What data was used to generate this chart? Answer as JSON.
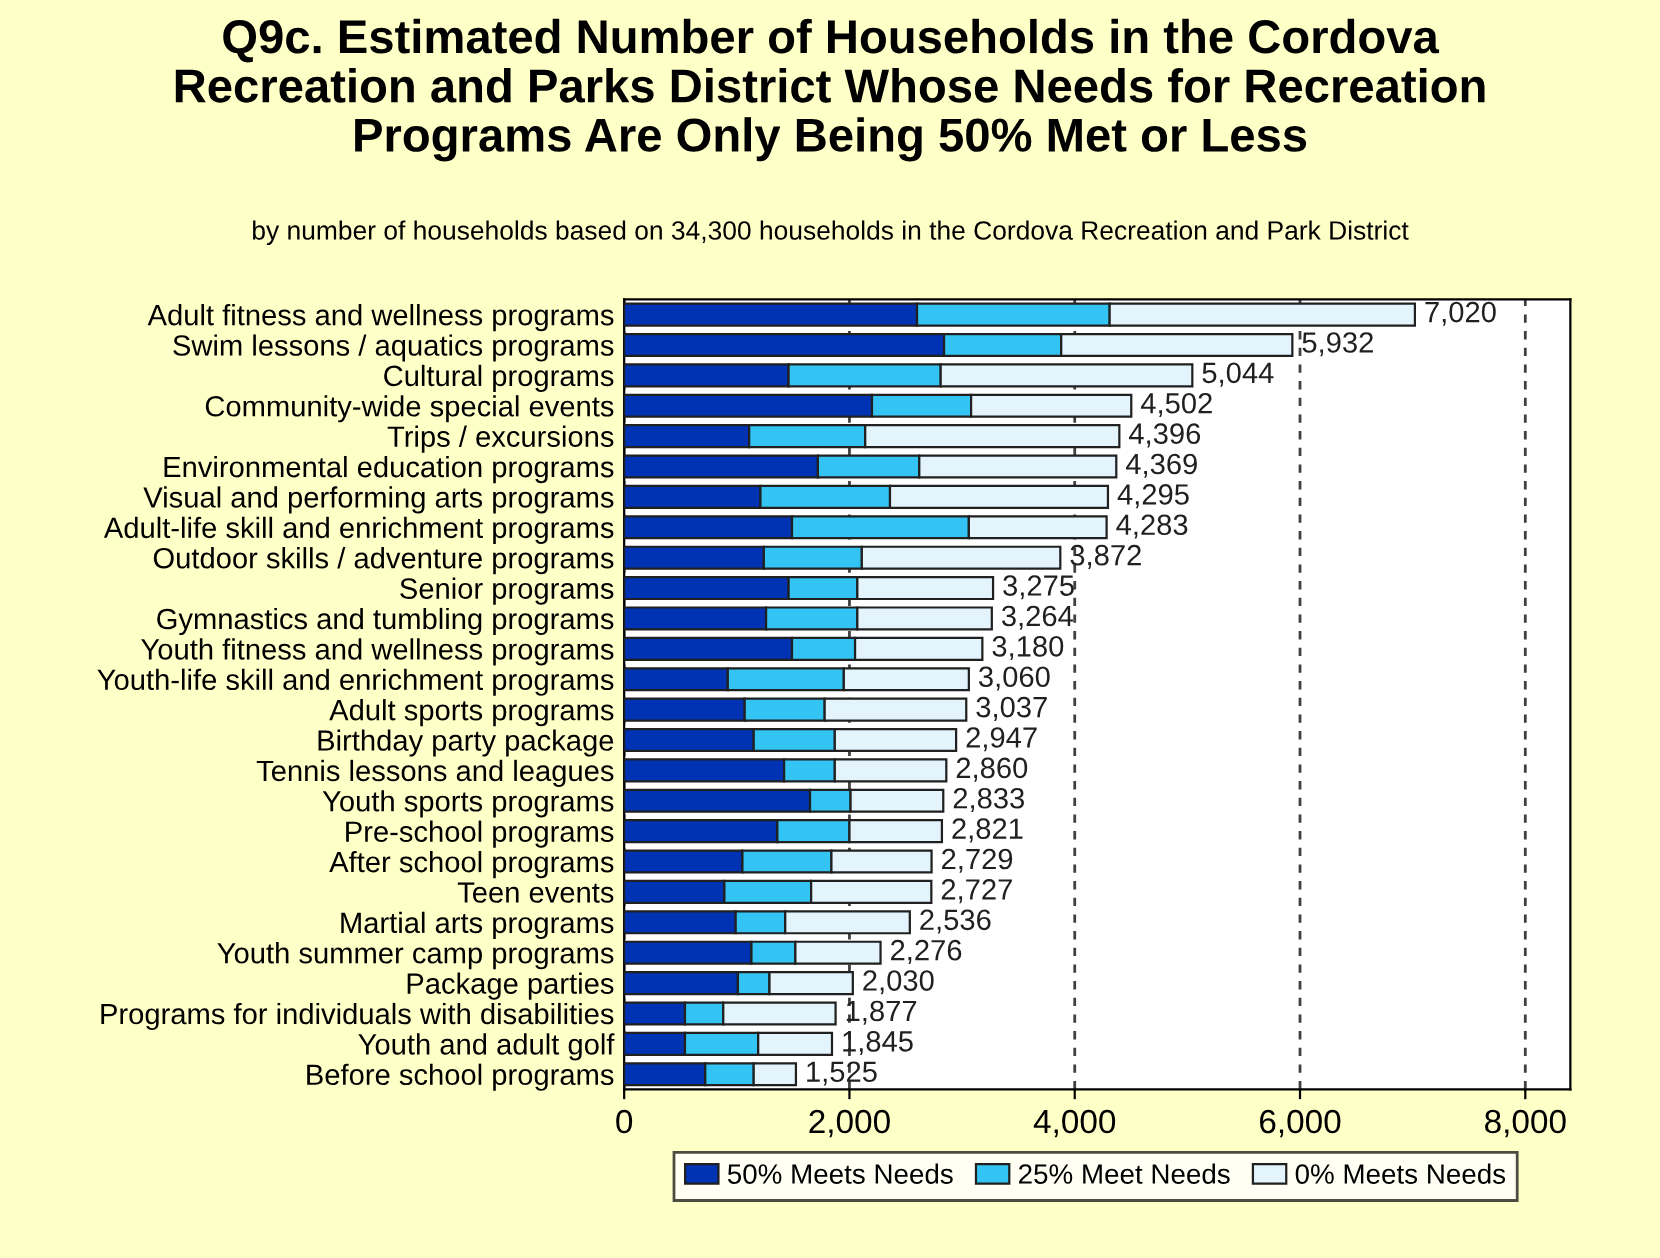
{
  "chart_data": {
    "type": "bar",
    "orientation": "horizontal",
    "stacked": true,
    "title": "Q9c. Estimated Number of Households in the Cordova\nRecreation and Parks District Whose Needs for Recreation\nPrograms Are Only Being 50% Met or Less",
    "subtitle": "by number of households based on 34,300 households in the Cordova Recreation and Park District",
    "categories": [
      "Adult fitness and wellness programs",
      "Swim lessons / aquatics programs",
      "Cultural programs",
      "Community-wide special events",
      "Trips / excursions",
      "Environmental education programs",
      "Visual and performing arts programs",
      "Adult-life skill and enrichment programs",
      "Outdoor skills / adventure programs",
      "Senior programs",
      "Gymnastics and tumbling programs",
      "Youth fitness and wellness programs",
      "Youth-life skill and enrichment programs",
      "Adult sports programs",
      "Birthday party package",
      "Tennis lessons and leagues",
      "Youth sports programs",
      "Pre-school programs",
      "After school programs",
      "Teen events",
      "Martial arts programs",
      "Youth summer camp programs",
      "Package parties",
      "Programs for individuals with disabilities",
      "Youth and adult golf",
      "Before school programs"
    ],
    "series": [
      {
        "name": "50% Meets Needs",
        "color": "#0033b4",
        "values": [
          2600,
          2840,
          1460,
          2200,
          1110,
          1720,
          1210,
          1490,
          1240,
          1460,
          1260,
          1490,
          920,
          1070,
          1150,
          1420,
          1650,
          1360,
          1050,
          890,
          990,
          1130,
          1010,
          540,
          540,
          720
        ]
      },
      {
        "name": "25% Meet Needs",
        "color": "#33c4f4",
        "values": [
          1710,
          1040,
          1350,
          880,
          1030,
          900,
          1150,
          1570,
          870,
          610,
          810,
          560,
          1030,
          710,
          720,
          450,
          360,
          640,
          790,
          770,
          440,
          390,
          280,
          340,
          650,
          430
        ]
      },
      {
        "name": "0% Meets Needs",
        "color": "#e4f4fc",
        "values": [
          2710,
          2052,
          2234,
          1422,
          2256,
          1749,
          1935,
          1223,
          1762,
          1205,
          1194,
          1130,
          1110,
          1257,
          1077,
          990,
          823,
          821,
          889,
          1067,
          1106,
          756,
          740,
          997,
          655,
          375
        ]
      }
    ],
    "totals": [
      "7,020",
      "5,932",
      "5,044",
      "4,502",
      "4,396",
      "4,369",
      "4,295",
      "4,283",
      "3,872",
      "3,275",
      "3,264",
      "3,180",
      "3,060",
      "3,037",
      "2,947",
      "2,860",
      "2,833",
      "2,821",
      "2,729",
      "2,727",
      "2,536",
      "2,276",
      "2,030",
      "1,877",
      "1,845",
      "1,525"
    ],
    "xlim": [
      0,
      8400
    ],
    "xticks": [
      0,
      {
        "value": 2000,
        "label": "2,000"
      },
      {
        "value": 4000,
        "label": "4,000"
      },
      {
        "value": 6000,
        "label": "6,000"
      },
      {
        "value": 8000,
        "label": "8,000"
      }
    ],
    "grid": "x",
    "legend": "bottom"
  }
}
